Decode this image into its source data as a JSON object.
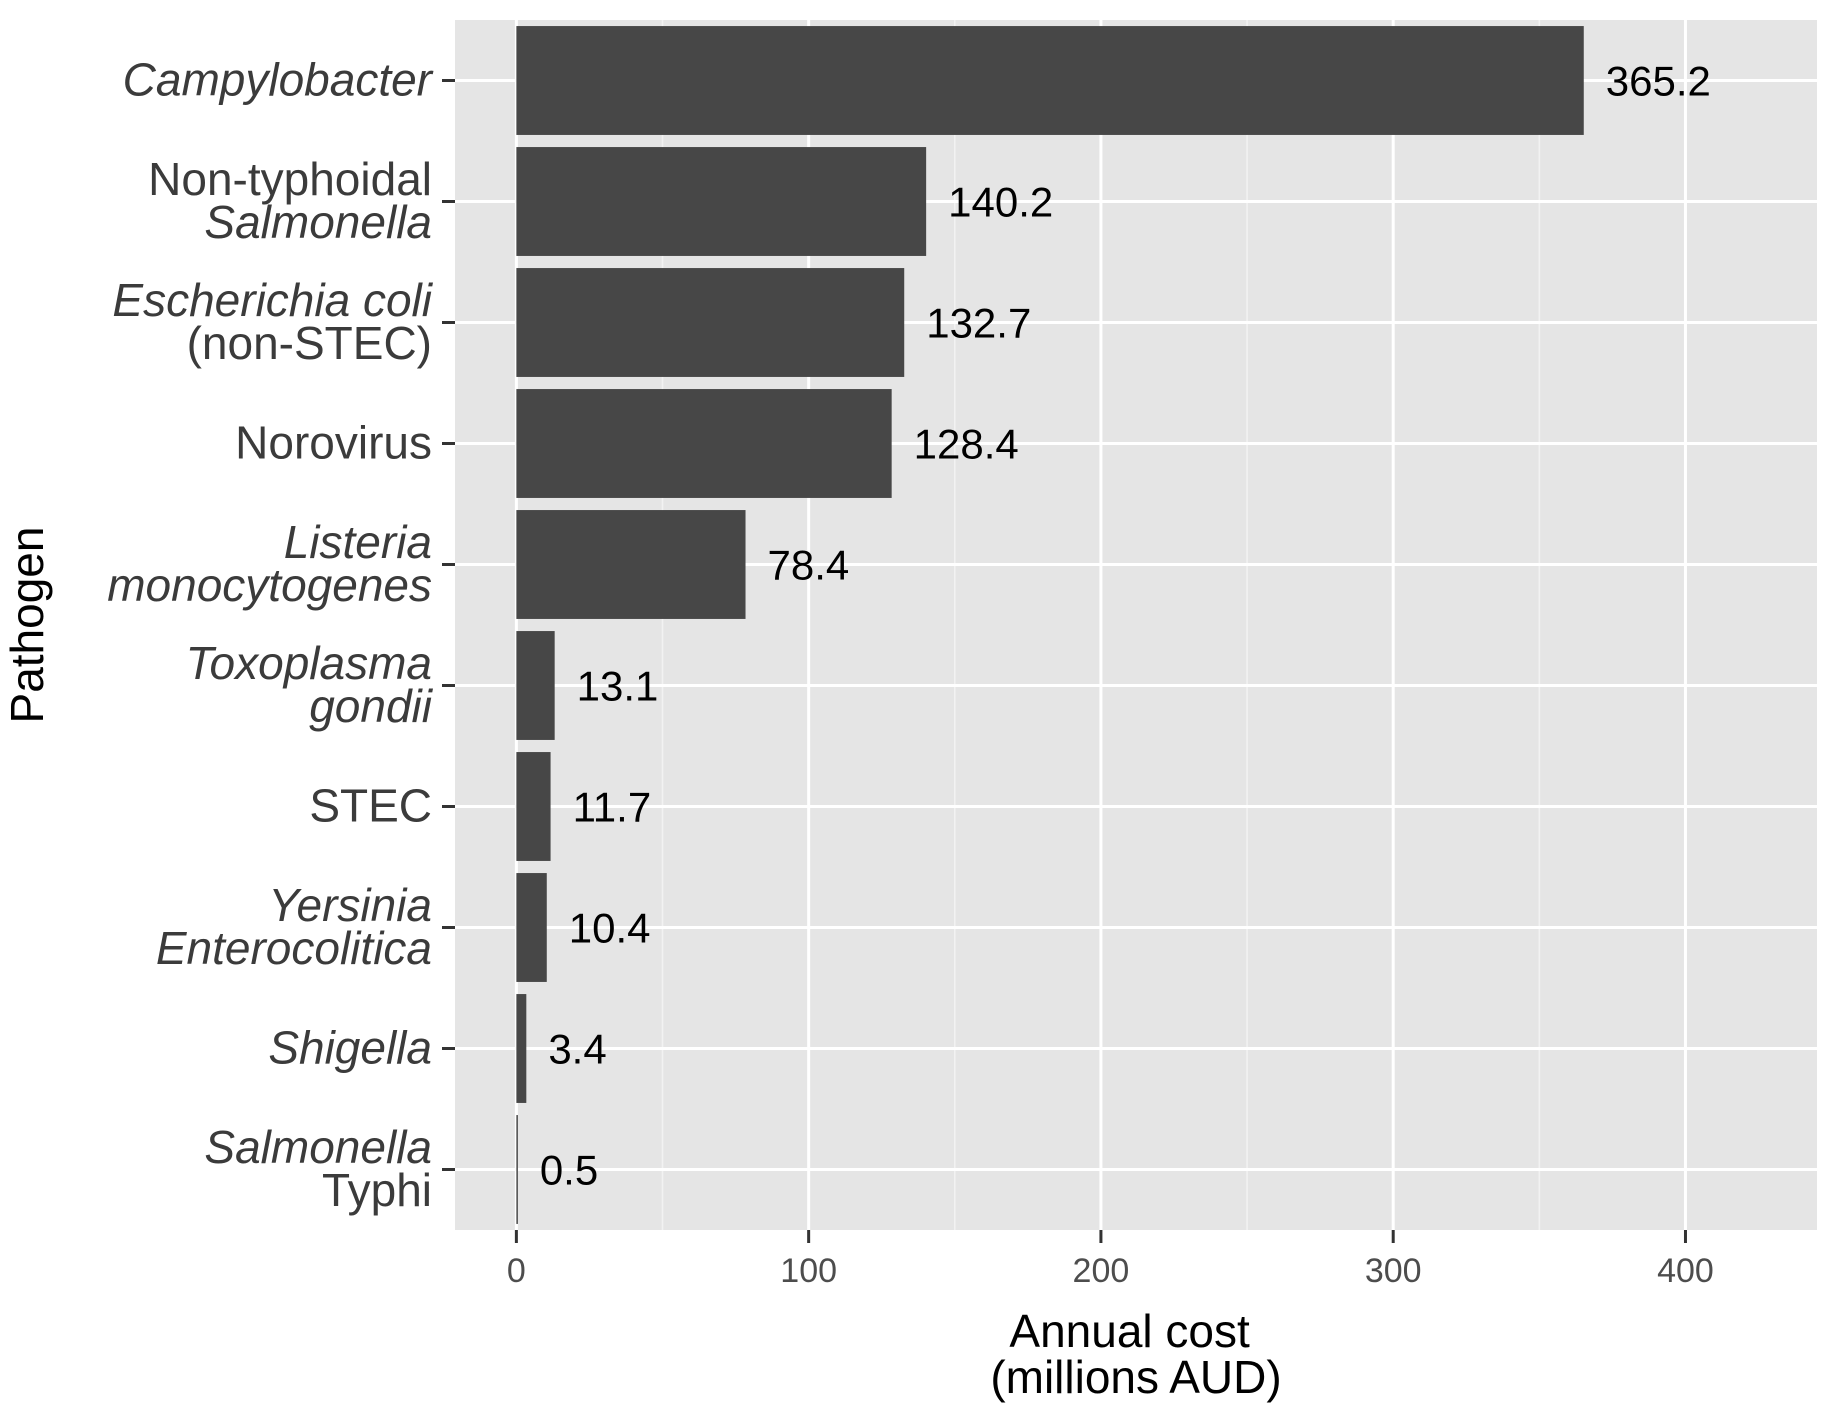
{
  "chart_data": {
    "type": "bar",
    "orientation": "horizontal",
    "ylabel": "Pathogen",
    "xlabel_lines": [
      "Annual cost",
      "(millions AUD)"
    ],
    "xlim": [
      -21,
      445
    ],
    "xticks": [
      0,
      100,
      200,
      300,
      400
    ],
    "xtick_labels": [
      "0",
      "100",
      "200",
      "300",
      "400"
    ],
    "grid": true,
    "colors": {
      "panel_background": "#e5e5e5",
      "grid_major": "#ffffff",
      "grid_minor": "#f2f2f2",
      "bar_fill": "#474747",
      "axis_tick": "#333333"
    },
    "categories": [
      {
        "name": "Campylobacter",
        "lines": [
          {
            "text": "Campylobacter",
            "italic": true
          }
        ],
        "value": 365.2,
        "label": "365.2"
      },
      {
        "name": "Non-typhoidal Salmonella",
        "lines": [
          {
            "text": "Non-typhoidal",
            "italic": false
          },
          {
            "text": "Salmonella",
            "italic": true
          }
        ],
        "value": 140.2,
        "label": "140.2"
      },
      {
        "name": "Escherichia coli (non-STEC)",
        "lines": [
          {
            "text": "Escherichia coli",
            "italic": true
          },
          {
            "text": "(non-STEC)",
            "italic": false
          }
        ],
        "value": 132.7,
        "label": "132.7"
      },
      {
        "name": "Norovirus",
        "lines": [
          {
            "text": "Norovirus",
            "italic": false
          }
        ],
        "value": 128.4,
        "label": "128.4"
      },
      {
        "name": "Listeria monocytogenes",
        "lines": [
          {
            "text": "Listeria",
            "italic": true
          },
          {
            "text": "monocytogenes",
            "italic": true
          }
        ],
        "value": 78.4,
        "label": "78.4"
      },
      {
        "name": "Toxoplasma gondii",
        "lines": [
          {
            "text": "Toxoplasma",
            "italic": true
          },
          {
            "text": "gondii",
            "italic": true
          }
        ],
        "value": 13.1,
        "label": "13.1"
      },
      {
        "name": "STEC",
        "lines": [
          {
            "text": "STEC",
            "italic": false
          }
        ],
        "value": 11.7,
        "label": "11.7"
      },
      {
        "name": "Yersinia Enterocolitica",
        "lines": [
          {
            "text": "Yersinia",
            "italic": true
          },
          {
            "text": "Enterocolitica",
            "italic": true
          }
        ],
        "value": 10.4,
        "label": "10.4"
      },
      {
        "name": "Shigella",
        "lines": [
          {
            "text": "Shigella",
            "italic": true
          }
        ],
        "value": 3.4,
        "label": "3.4"
      },
      {
        "name": "Salmonella Typhi",
        "lines": [
          {
            "text": "Salmonella",
            "italic": true
          },
          {
            "text": "Typhi",
            "italic": false
          }
        ],
        "value": 0.5,
        "label": "0.5"
      }
    ]
  }
}
